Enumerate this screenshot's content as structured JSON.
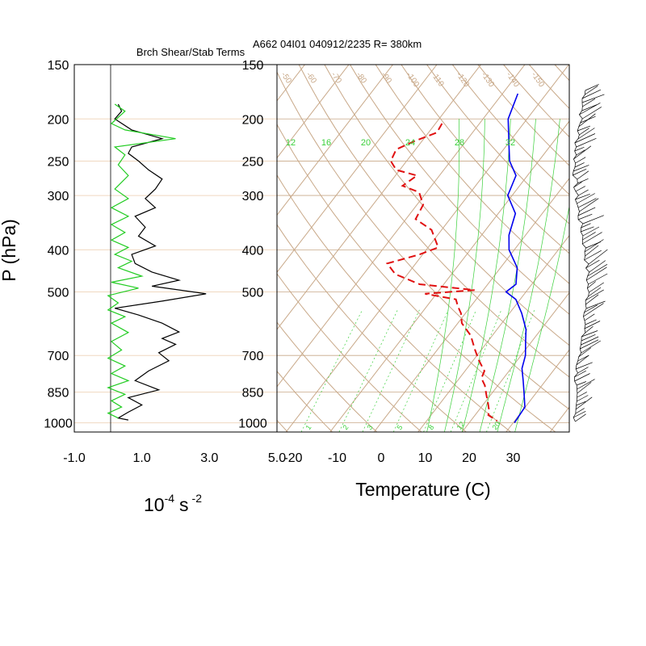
{
  "chart_data": [
    {
      "type": "line",
      "panel": "brunt-shear",
      "title": "Brch Shear/Stab Terms",
      "xlabel": "10",
      "xlabel_exp": "-4",
      "xlabel_unit": "s",
      "xlabel_unit_exp": "-2",
      "ylabel": "P (hPa)",
      "xlim": [
        -1.0,
        5.0
      ],
      "x_ticks": [
        "-1.0",
        "1.0",
        "3.0",
        "5.0"
      ],
      "y_ticks": [
        "150",
        "200",
        "250",
        "300",
        "400",
        "500",
        "700",
        "850",
        "1000"
      ],
      "y_tick_values": [
        150,
        200,
        250,
        300,
        400,
        500,
        700,
        850,
        1000
      ],
      "ylim": [
        150,
        1050
      ],
      "y_scale": "log",
      "colors": {
        "shear": "#000000",
        "stability": "#22cc22",
        "zero_line": "#000000",
        "gridline": "#f0d8c0"
      },
      "series": [
        {
          "key": "shear",
          "points": [
            [
              0.3,
              185
            ],
            [
              0.4,
              192
            ],
            [
              0.2,
              200
            ],
            [
              0.7,
              212
            ],
            [
              1.6,
              222
            ],
            [
              0.7,
              232
            ],
            [
              0.6,
              240
            ],
            [
              0.9,
              250
            ],
            [
              1.2,
              262
            ],
            [
              1.6,
              275
            ],
            [
              1.4,
              290
            ],
            [
              1.1,
              305
            ],
            [
              1.4,
              320
            ],
            [
              0.8,
              335
            ],
            [
              1.1,
              355
            ],
            [
              0.9,
              372
            ],
            [
              1.4,
              392
            ],
            [
              0.7,
              410
            ],
            [
              0.8,
              430
            ],
            [
              1.3,
              450
            ],
            [
              2.1,
              470
            ],
            [
              1.3,
              485
            ],
            [
              2.9,
              505
            ],
            [
              1.6,
              525
            ],
            [
              0.2,
              545
            ],
            [
              0.9,
              565
            ],
            [
              1.6,
              590
            ],
            [
              2.1,
              618
            ],
            [
              1.6,
              640
            ],
            [
              2.0,
              660
            ],
            [
              1.5,
              690
            ],
            [
              1.8,
              720
            ],
            [
              1.2,
              760
            ],
            [
              0.8,
              800
            ],
            [
              1.5,
              840
            ],
            [
              0.6,
              875
            ],
            [
              1.0,
              910
            ],
            [
              0.6,
              945
            ],
            [
              0.3,
              975
            ],
            [
              0.6,
              985
            ]
          ]
        },
        {
          "key": "stability",
          "points": [
            [
              0.2,
              185
            ],
            [
              0.5,
              192
            ],
            [
              0.1,
              205
            ],
            [
              0.5,
              212
            ],
            [
              2.0,
              222
            ],
            [
              0.2,
              232
            ],
            [
              0.5,
              242
            ],
            [
              0.3,
              255
            ],
            [
              0.6,
              270
            ],
            [
              0.2,
              290
            ],
            [
              0.6,
              305
            ],
            [
              0.1,
              320
            ],
            [
              0.6,
              335
            ],
            [
              0.1,
              350
            ],
            [
              0.5,
              365
            ],
            [
              0.1,
              380
            ],
            [
              0.6,
              395
            ],
            [
              0.2,
              410
            ],
            [
              0.7,
              425
            ],
            [
              0.3,
              440
            ],
            [
              1.0,
              460
            ],
            [
              0.1,
              475
            ],
            [
              0.9,
              490
            ],
            [
              0.0,
              510
            ],
            [
              0.3,
              530
            ],
            [
              0.0,
              550
            ],
            [
              0.5,
              570
            ],
            [
              0.1,
              590
            ],
            [
              0.6,
              620
            ],
            [
              0.1,
              650
            ],
            [
              0.4,
              680
            ],
            [
              0.0,
              710
            ],
            [
              0.5,
              740
            ],
            [
              0.1,
              770
            ],
            [
              0.6,
              800
            ],
            [
              0.0,
              830
            ],
            [
              0.5,
              860
            ],
            [
              0.1,
              890
            ],
            [
              0.4,
              920
            ],
            [
              0.0,
              950
            ],
            [
              0.3,
              975
            ]
          ]
        }
      ]
    },
    {
      "type": "line",
      "panel": "skew-t",
      "title": "A662 04I01 040912/2235 R= 380km",
      "xlabel": "Temperature (C)",
      "xlim": [
        -25,
        40
      ],
      "x_ticks": [
        "-20",
        "-10",
        "0",
        "10",
        "20",
        "30"
      ],
      "y_ticks": [
        "150",
        "200",
        "250",
        "300",
        "400",
        "500",
        "700",
        "850",
        "1000"
      ],
      "y_tick_values": [
        150,
        200,
        250,
        300,
        400,
        500,
        700,
        850,
        1000
      ],
      "ylim": [
        150,
        1050
      ],
      "y_scale": "log",
      "skew": "skew-T log-p",
      "isotherm_labels_top": [
        "-50",
        "-60",
        "-70",
        "-80",
        "-90",
        "-100",
        "-110",
        "-120",
        "-130",
        "-140",
        "-150"
      ],
      "mixing_ratio_labels_top": [
        "12",
        "16",
        "20",
        "24",
        "28",
        "32"
      ],
      "mixing_ratio_labels_bottom": [
        "1",
        "2",
        "3",
        "5",
        "8",
        "12",
        "20"
      ],
      "colors": {
        "temperature": "#0000ee",
        "dewpoint": "#e01010",
        "isotherm": "#c8a888",
        "adiabat_green": "#3ad03a"
      },
      "series": [
        {
          "key": "temperature",
          "points": [
            [
              -26.5,
              175
            ],
            [
              -24.3,
              200
            ],
            [
              -19.5,
              230
            ],
            [
              -16.6,
              250
            ],
            [
              -12.6,
              270
            ],
            [
              -11.0,
              300
            ],
            [
              -6.1,
              330
            ],
            [
              -3.8,
              370
            ],
            [
              -1.2,
              400
            ],
            [
              3.8,
              440
            ],
            [
              6.4,
              480
            ],
            [
              5.5,
              500
            ],
            [
              9.0,
              520
            ],
            [
              12.8,
              560
            ],
            [
              16.6,
              610
            ],
            [
              18.6,
              650
            ],
            [
              21.0,
              700
            ],
            [
              22.5,
              750
            ],
            [
              24.9,
              800
            ],
            [
              27.1,
              850
            ],
            [
              29.9,
              920
            ],
            [
              30.3,
              1000
            ]
          ]
        },
        {
          "key": "dewpoint",
          "points": [
            [
              -38.5,
              205
            ],
            [
              -38.1,
              215
            ],
            [
              -41.7,
              225
            ],
            [
              -44.4,
              235
            ],
            [
              -43.6,
              250
            ],
            [
              -40.8,
              262
            ],
            [
              -35.1,
              270
            ],
            [
              -36.6,
              285
            ],
            [
              -31.7,
              295
            ],
            [
              -28.6,
              315
            ],
            [
              -27.8,
              340
            ],
            [
              -22.3,
              360
            ],
            [
              -17.7,
              395
            ],
            [
              -20.7,
              410
            ],
            [
              -26.5,
              430
            ],
            [
              -22.8,
              455
            ],
            [
              -15.5,
              480
            ],
            [
              -2.0,
              495
            ],
            [
              -12.6,
              505
            ],
            [
              -4.6,
              520
            ],
            [
              -2.9,
              540
            ],
            [
              -1.0,
              560
            ],
            [
              0.9,
              590
            ],
            [
              5.1,
              630
            ],
            [
              8.6,
              680
            ],
            [
              11.4,
              720
            ],
            [
              14.4,
              760
            ],
            [
              15.0,
              790
            ],
            [
              17.0,
              820
            ],
            [
              18.9,
              860
            ],
            [
              20.8,
              900
            ],
            [
              22.5,
              940
            ],
            [
              23.0,
              960
            ],
            [
              26.0,
              990
            ]
          ]
        }
      ]
    },
    {
      "type": "wind-barbs",
      "panel": "wind-profile",
      "colors": {
        "barb": "#000000"
      }
    }
  ]
}
